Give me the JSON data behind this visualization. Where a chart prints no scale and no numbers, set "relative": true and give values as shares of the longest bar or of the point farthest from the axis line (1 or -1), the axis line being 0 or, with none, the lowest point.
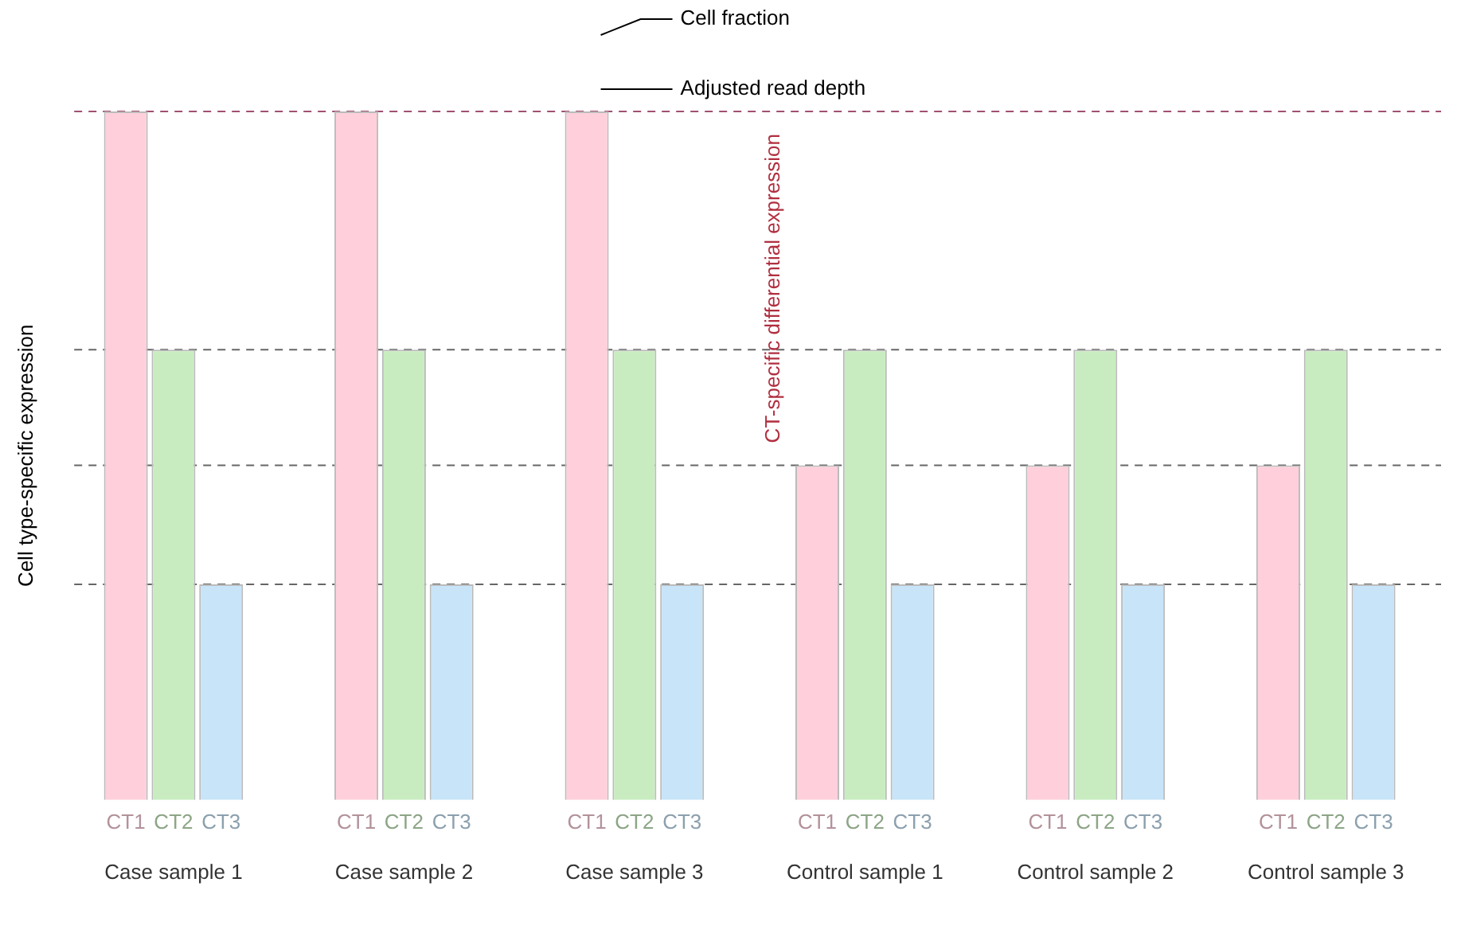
{
  "chart_data": {
    "type": "bar",
    "relative": true,
    "ylabel": "Cell type-specific expression",
    "categories": [
      "Case sample 1",
      "Case sample 2",
      "Case sample 3",
      "Control sample 1",
      "Control sample 2",
      "Control sample 3"
    ],
    "series": [
      {
        "name": "CT1",
        "color": "#ffd0dc",
        "values": [
          1,
          1,
          1,
          0.486,
          0.486,
          0.486
        ]
      },
      {
        "name": "CT2",
        "color": "#c8ecc0",
        "values": [
          0.654,
          0.654,
          0.654,
          0.654,
          0.654,
          0.654
        ]
      },
      {
        "name": "CT3",
        "color": "#c8e4f8",
        "values": [
          0.313,
          0.313,
          0.313,
          0.313,
          0.313,
          0.313
        ]
      }
    ],
    "ref_lines": [
      {
        "axis": "y",
        "value": 1,
        "color": "#a05070",
        "line_style": "dashed"
      },
      {
        "axis": "y",
        "value": 0.654,
        "color": "#666666",
        "line_style": "dashed"
      },
      {
        "axis": "y",
        "value": 0.486,
        "color": "#666666",
        "line_style": "dashed"
      },
      {
        "axis": "y",
        "value": 0.313,
        "color": "#666666",
        "line_style": "dashed"
      }
    ],
    "annotations": [
      "Cell fraction",
      "Adjusted read depth",
      "CT-specific differential expression"
    ],
    "grid": false,
    "legend": false
  }
}
